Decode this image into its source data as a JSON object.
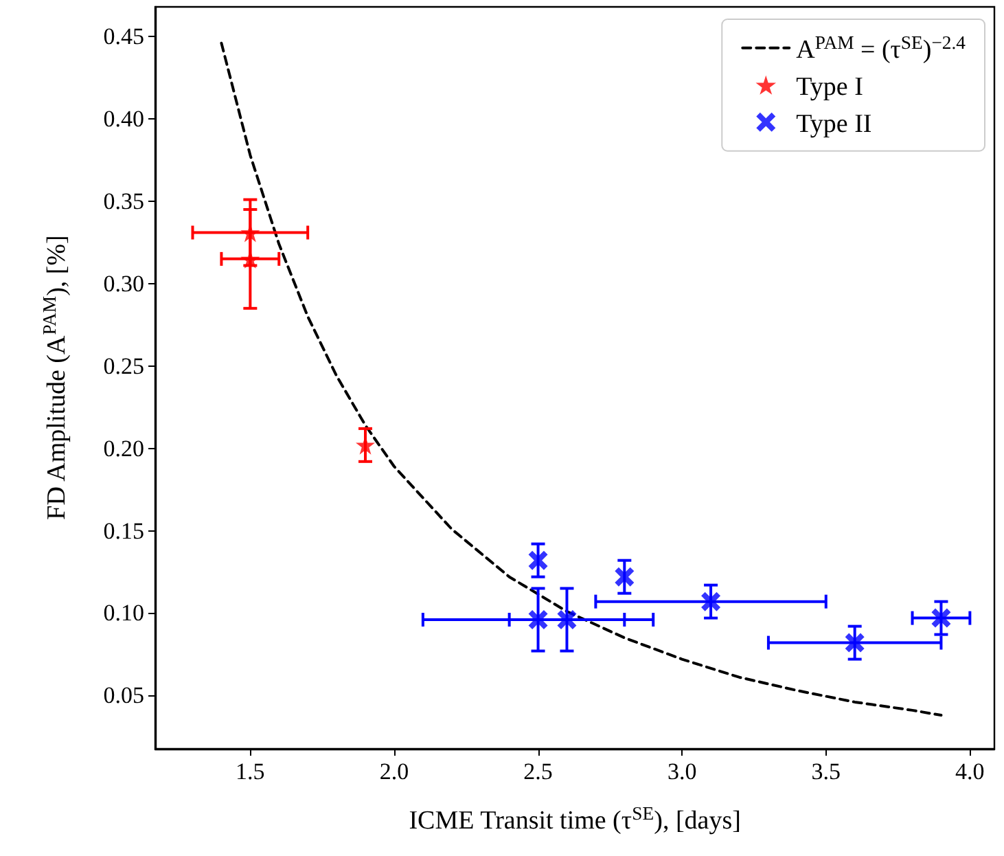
{
  "chart_data": {
    "type": "scatter",
    "xlabel": "ICME Transit time (τ$^{SE}$), [days]",
    "ylabel": "FD Amplitude (A$^{PAM}$), [%]",
    "xlim": [
      1.17,
      4.085
    ],
    "ylim": [
      0.0176,
      0.468
    ],
    "xticks": [
      {
        "value": 1.5,
        "label": "1.5"
      },
      {
        "value": 2,
        "label": "2.0"
      },
      {
        "value": 2.5,
        "label": "2.5"
      },
      {
        "value": 3,
        "label": "3.0"
      },
      {
        "value": 3.5,
        "label": "3.5"
      },
      {
        "value": 4,
        "label": "4.0"
      }
    ],
    "yticks": [
      {
        "value": 0.05,
        "label": "0.05"
      },
      {
        "value": 0.1,
        "label": "0.10"
      },
      {
        "value": 0.15,
        "label": "0.15"
      },
      {
        "value": 0.2,
        "label": "0.20"
      },
      {
        "value": 0.25,
        "label": "0.25"
      },
      {
        "value": 0.3,
        "label": "0.30"
      },
      {
        "value": 0.35,
        "label": "0.35"
      },
      {
        "value": 0.4,
        "label": "0.40"
      },
      {
        "value": 0.45,
        "label": "0.45"
      }
    ],
    "grid": false,
    "legend": "top right",
    "series": [
      {
        "name": "A$^{PAM}$ = (τ$^{SE}$)$^{−2.4}$",
        "type": "line",
        "color": "#000000",
        "marker": "none",
        "line_style": "dashed",
        "x": [
          1.4,
          1.5,
          1.6,
          1.7,
          1.8,
          1.9,
          2.0,
          2.2,
          2.4,
          2.6,
          2.8,
          3.0,
          3.2,
          3.4,
          3.6,
          3.8,
          3.9
        ],
        "values": [
          0.446,
          0.378,
          0.324,
          0.28,
          0.244,
          0.214,
          0.189,
          0.151,
          0.122,
          0.101,
          0.085,
          0.072,
          0.061,
          0.053,
          0.046,
          0.041,
          0.038
        ]
      },
      {
        "name": "Type I",
        "color": "#ff0000",
        "marker": "star",
        "x": [
          1.5,
          1.5,
          1.9
        ],
        "values": [
          0.331,
          0.315,
          0.202
        ],
        "errors": [
          0.02,
          0.03,
          0.01
        ],
        "xerrors": [
          0.2,
          0.1,
          null
        ]
      },
      {
        "name": "Type II",
        "color": "#0000ff",
        "marker": "cross",
        "x": [
          2.5,
          2.5,
          2.6,
          2.8,
          3.1,
          3.6,
          3.9
        ],
        "values": [
          0.132,
          0.096,
          0.096,
          0.122,
          0.107,
          0.082,
          0.097
        ],
        "errors": [
          0.01,
          0.019,
          0.019,
          0.01,
          0.01,
          0.01,
          0.01
        ],
        "xerrors": [
          null,
          0.4,
          0.2,
          null,
          0.4,
          0.3,
          0.1
        ]
      }
    ]
  }
}
